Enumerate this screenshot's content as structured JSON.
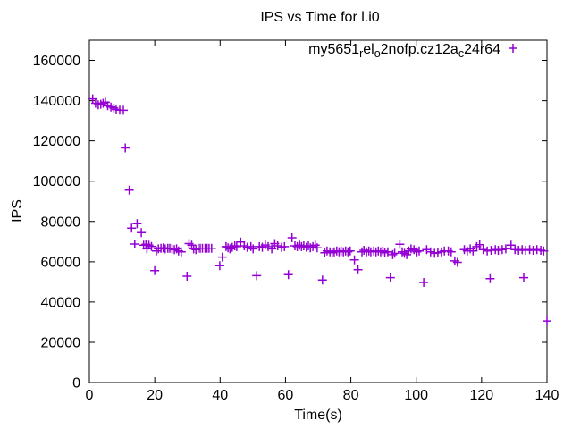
{
  "title": "IPS vs Time for l.i0",
  "axes": {
    "x_label": "Time(s)",
    "y_label": "IPS"
  },
  "legend": {
    "label_plain": "my5651_rel_o2nofp.cz12a_c24r64",
    "label_parts": [
      {
        "text": "my5651",
        "sub": false
      },
      {
        "text": "r",
        "sub": true
      },
      {
        "text": "el",
        "sub": false
      },
      {
        "text": "o",
        "sub": true
      },
      {
        "text": "2nofp.cz12a",
        "sub": false
      },
      {
        "text": "c",
        "sub": true
      },
      {
        "text": "24r64",
        "sub": false
      }
    ],
    "marker": "+",
    "marker_color": "#9400d3"
  },
  "colors": {
    "series": "#9400d3",
    "axis": "#000000",
    "background": "#ffffff"
  },
  "chart_data": {
    "type": "scatter",
    "title": "IPS vs Time for l.i0",
    "xlabel": "Time(s)",
    "ylabel": "IPS",
    "xlim": [
      0,
      140
    ],
    "ylim": [
      0,
      170000
    ],
    "xticks": [
      0,
      20,
      40,
      60,
      80,
      100,
      120,
      140
    ],
    "yticks": [
      0,
      20000,
      40000,
      60000,
      80000,
      100000,
      120000,
      140000,
      160000
    ],
    "grid": false,
    "legend_position": "top-right-inside",
    "marker": "plus",
    "series": [
      {
        "name": "my5651_rel_o2nofp.cz12a_c24r64",
        "color": "#9400d3",
        "points": [
          [
            1.0,
            140900
          ],
          [
            1.9,
            138700
          ],
          [
            2.7,
            137900
          ],
          [
            3.5,
            138200
          ],
          [
            4.2,
            138700
          ],
          [
            4.9,
            139200
          ],
          [
            5.6,
            137500
          ],
          [
            6.6,
            136800
          ],
          [
            7.5,
            136300
          ],
          [
            8.2,
            135600
          ],
          [
            9.3,
            135300
          ],
          [
            10.4,
            135200
          ],
          [
            11.0,
            116500
          ],
          [
            12.2,
            95500
          ],
          [
            12.9,
            76700
          ],
          [
            13.9,
            68800
          ],
          [
            14.6,
            78900
          ],
          [
            15.9,
            74500
          ],
          [
            16.6,
            68200
          ],
          [
            17.3,
            68700
          ],
          [
            17.6,
            66500
          ],
          [
            18.2,
            68200
          ],
          [
            19.0,
            67600
          ],
          [
            20.0,
            55600
          ],
          [
            20.5,
            65400
          ],
          [
            21.1,
            66400
          ],
          [
            21.9,
            66700
          ],
          [
            22.6,
            66900
          ],
          [
            23.2,
            66400
          ],
          [
            24.0,
            66700
          ],
          [
            24.6,
            66700
          ],
          [
            25.3,
            66400
          ],
          [
            26.0,
            66000
          ],
          [
            26.7,
            66400
          ],
          [
            27.3,
            65400
          ],
          [
            28.1,
            64900
          ],
          [
            29.9,
            52800
          ],
          [
            30.5,
            69000
          ],
          [
            31.3,
            68200
          ],
          [
            31.9,
            66400
          ],
          [
            32.6,
            66000
          ],
          [
            33.3,
            66700
          ],
          [
            33.9,
            66700
          ],
          [
            34.6,
            66700
          ],
          [
            35.4,
            66700
          ],
          [
            36.0,
            66700
          ],
          [
            36.6,
            66700
          ],
          [
            37.4,
            66700
          ],
          [
            39.9,
            58000
          ],
          [
            40.7,
            62300
          ],
          [
            41.8,
            67500
          ],
          [
            42.4,
            66900
          ],
          [
            43.0,
            66400
          ],
          [
            43.7,
            67200
          ],
          [
            44.5,
            67900
          ],
          [
            45.1,
            67500
          ],
          [
            46.3,
            69800
          ],
          [
            47.4,
            67900
          ],
          [
            48.3,
            67200
          ],
          [
            49.4,
            67500
          ],
          [
            50.1,
            66400
          ],
          [
            51.2,
            53100
          ],
          [
            52.0,
            67500
          ],
          [
            52.9,
            67200
          ],
          [
            53.8,
            68300
          ],
          [
            54.7,
            67500
          ],
          [
            55.8,
            66400
          ],
          [
            56.7,
            69000
          ],
          [
            57.6,
            67900
          ],
          [
            58.8,
            67200
          ],
          [
            59.7,
            67500
          ],
          [
            60.9,
            53600
          ],
          [
            62.0,
            71900
          ],
          [
            62.9,
            67900
          ],
          [
            63.6,
            67500
          ],
          [
            64.3,
            68200
          ],
          [
            64.9,
            67500
          ],
          [
            65.6,
            67900
          ],
          [
            66.4,
            67200
          ],
          [
            67.0,
            67900
          ],
          [
            67.6,
            66900
          ],
          [
            68.4,
            67500
          ],
          [
            69.1,
            68200
          ],
          [
            69.7,
            66900
          ],
          [
            71.3,
            50900
          ],
          [
            72.0,
            64500
          ],
          [
            72.7,
            65400
          ],
          [
            73.6,
            64900
          ],
          [
            74.3,
            64500
          ],
          [
            74.9,
            64900
          ],
          [
            75.7,
            65400
          ],
          [
            76.4,
            64900
          ],
          [
            77.0,
            65400
          ],
          [
            77.7,
            64900
          ],
          [
            78.4,
            65400
          ],
          [
            79.1,
            64900
          ],
          [
            79.8,
            65400
          ],
          [
            81.1,
            60900
          ],
          [
            82.2,
            56000
          ],
          [
            83.4,
            64900
          ],
          [
            84.0,
            65700
          ],
          [
            84.8,
            64900
          ],
          [
            85.5,
            65400
          ],
          [
            86.1,
            64900
          ],
          [
            87.0,
            65400
          ],
          [
            87.7,
            64900
          ],
          [
            88.4,
            65400
          ],
          [
            89.1,
            64900
          ],
          [
            89.8,
            65400
          ],
          [
            90.4,
            64500
          ],
          [
            91.3,
            64900
          ],
          [
            92.1,
            52100
          ],
          [
            92.8,
            63500
          ],
          [
            93.4,
            64200
          ],
          [
            95.0,
            68700
          ],
          [
            95.7,
            64900
          ],
          [
            96.4,
            64200
          ],
          [
            97.1,
            63500
          ],
          [
            97.7,
            65400
          ],
          [
            98.4,
            66400
          ],
          [
            99.3,
            66000
          ],
          [
            100.2,
            64900
          ],
          [
            100.9,
            65400
          ],
          [
            102.3,
            49700
          ],
          [
            103.2,
            66000
          ],
          [
            104.4,
            64900
          ],
          [
            105.6,
            64200
          ],
          [
            106.6,
            64500
          ],
          [
            107.7,
            64900
          ],
          [
            108.6,
            65400
          ],
          [
            109.8,
            65400
          ],
          [
            110.7,
            64900
          ],
          [
            111.8,
            60400
          ],
          [
            112.6,
            59700
          ],
          [
            114.7,
            66000
          ],
          [
            115.6,
            65400
          ],
          [
            116.5,
            66400
          ],
          [
            117.4,
            65400
          ],
          [
            118.5,
            67500
          ],
          [
            119.4,
            68500
          ],
          [
            120.5,
            66000
          ],
          [
            121.7,
            65400
          ],
          [
            122.6,
            51600
          ],
          [
            122.9,
            65700
          ],
          [
            124.2,
            66000
          ],
          [
            125.1,
            65700
          ],
          [
            126.3,
            66000
          ],
          [
            127.4,
            66400
          ],
          [
            129.0,
            68200
          ],
          [
            130.2,
            66000
          ],
          [
            131.3,
            65700
          ],
          [
            132.4,
            66000
          ],
          [
            132.9,
            52100
          ],
          [
            133.5,
            65700
          ],
          [
            134.7,
            66000
          ],
          [
            135.8,
            65700
          ],
          [
            136.9,
            66000
          ],
          [
            138.1,
            65700
          ],
          [
            139.0,
            65400
          ],
          [
            140.0,
            30600
          ]
        ]
      }
    ]
  }
}
